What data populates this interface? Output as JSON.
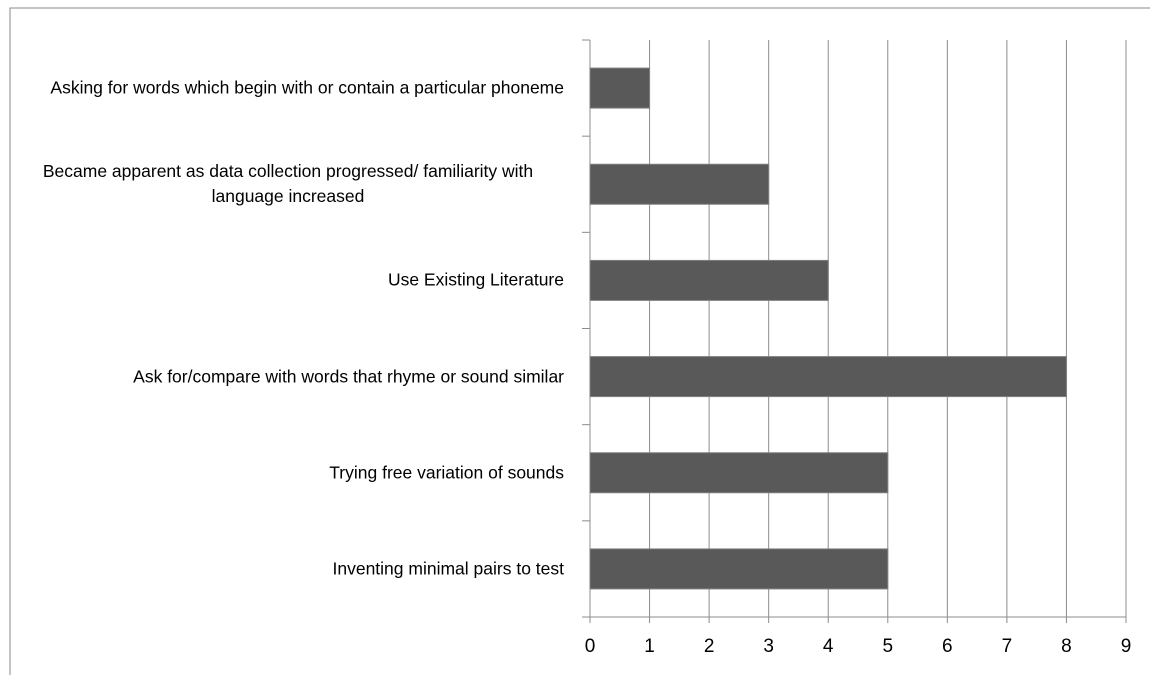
{
  "chart_data": {
    "type": "barh",
    "categories": [
      "Asking for words which begin with or contain a particular phoneme",
      "Became apparent as data collection progressed/ familiarity with language increased",
      "Use Existing Literature",
      "Ask for/compare with words that rhyme or sound similar",
      "Trying free variation of sounds",
      "Inventing minimal pairs to test"
    ],
    "values": [
      1,
      3,
      4,
      8,
      5,
      5
    ],
    "color": "#595959",
    "xlim": [
      0,
      9
    ],
    "xticks": [
      0,
      1,
      2,
      3,
      4,
      5,
      6,
      7,
      8,
      9
    ],
    "grid": true
  }
}
